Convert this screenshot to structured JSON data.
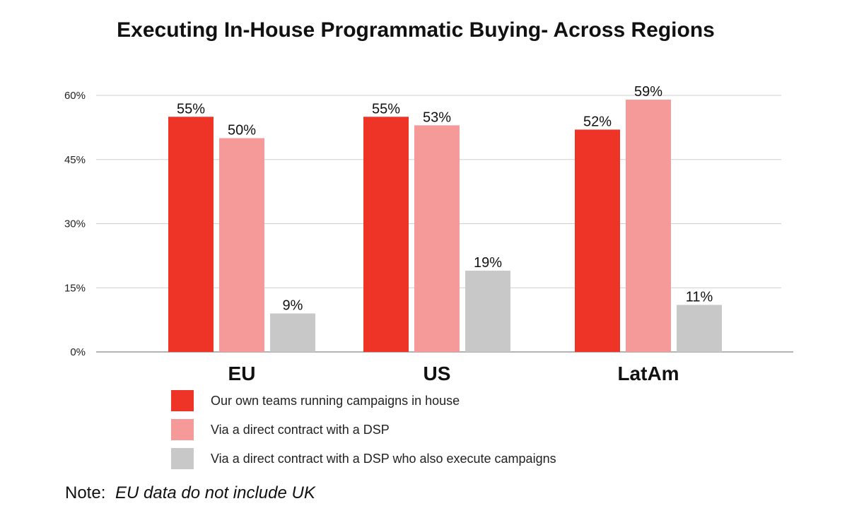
{
  "chart_data": {
    "type": "bar",
    "title": "Executing In-House Programmatic Buying- Across Regions",
    "categories": [
      "EU",
      "US",
      "LatAm"
    ],
    "series": [
      {
        "name": "Our own teams running campaigns in house",
        "values": [
          55,
          55,
          52
        ],
        "labels": [
          "55%",
          "55%",
          "52%"
        ],
        "color": "#ee3426"
      },
      {
        "name": "Via a direct contract with a DSP",
        "values": [
          50,
          53,
          59
        ],
        "labels": [
          "50%",
          "53%",
          "59%"
        ],
        "color": "#f59a98"
      },
      {
        "name": "Via a direct contract with a DSP who also execute campaigns",
        "values": [
          9,
          19,
          11
        ],
        "labels": [
          "9%",
          "19%",
          "11%"
        ],
        "color": "#c8c8c8"
      }
    ],
    "y_ticks": [
      0,
      15,
      30,
      45,
      60
    ],
    "y_tick_labels": [
      "0%",
      "15%",
      "30%",
      "45%",
      "60%"
    ],
    "ylim": [
      0,
      63
    ],
    "grid": true,
    "legend_position": "bottom",
    "xlabel": "",
    "ylabel": ""
  },
  "note": {
    "prefix": "Note:",
    "text": "EU data do not include UK"
  }
}
